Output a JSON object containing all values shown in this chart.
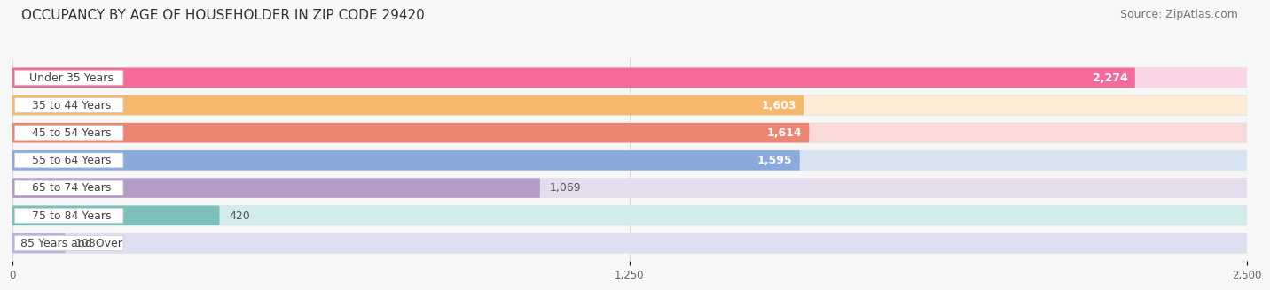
{
  "title": "OCCUPANCY BY AGE OF HOUSEHOLDER IN ZIP CODE 29420",
  "source": "Source: ZipAtlas.com",
  "categories": [
    "Under 35 Years",
    "35 to 44 Years",
    "45 to 54 Years",
    "55 to 64 Years",
    "65 to 74 Years",
    "75 to 84 Years",
    "85 Years and Over"
  ],
  "values": [
    2274,
    1603,
    1614,
    1595,
    1069,
    420,
    108
  ],
  "bar_colors": [
    "#F46B9B",
    "#F5B96E",
    "#EE8572",
    "#89AADA",
    "#B49CC8",
    "#7DC0BB",
    "#B5B5E5"
  ],
  "bar_bg_colors": [
    "#FAD5E5",
    "#FDEBD5",
    "#F9DAD8",
    "#D8E4F2",
    "#E5DCEE",
    "#D2ECEB",
    "#DFDFF2"
  ],
  "label_bg_color": "#ffffff",
  "xlim": [
    0,
    2500
  ],
  "xticks": [
    0,
    1250,
    2500
  ],
  "title_fontsize": 11,
  "source_fontsize": 9,
  "label_fontsize": 9,
  "value_fontsize": 9,
  "bar_height": 0.72,
  "bar_gap": 0.28,
  "background_color": "#f7f7f7",
  "grid_color": "#d8d8d8",
  "value_colors_white": [
    true,
    true,
    true,
    true,
    false,
    false,
    false
  ]
}
